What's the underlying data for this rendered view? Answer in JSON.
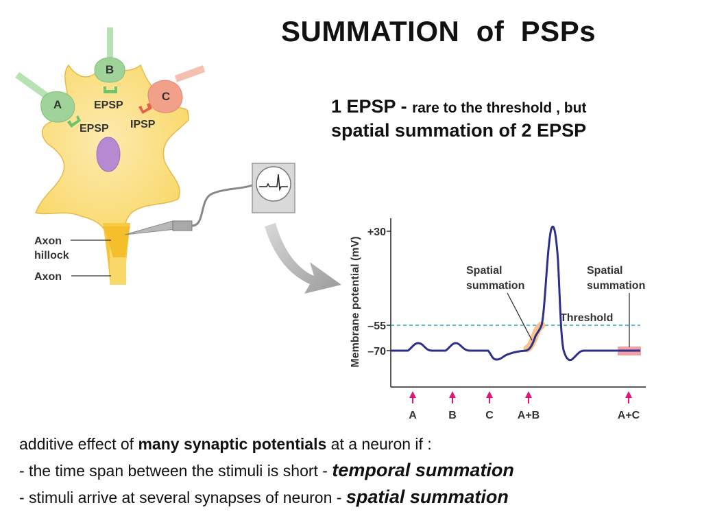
{
  "title": "SUMMATION  of  PSPs",
  "subtitle": {
    "line1_big": "1 EPSP - ",
    "line1_small": "rare to the threshold , but",
    "line2": "spatial summation of 2 EPSP"
  },
  "neuron": {
    "synapses": [
      {
        "id": "A",
        "label": "A",
        "type": "excitatory"
      },
      {
        "id": "B",
        "label": "B",
        "type": "excitatory"
      },
      {
        "id": "C",
        "label": "C",
        "type": "inhibitory"
      }
    ],
    "psp_labels": {
      "epsp_b": "EPSP",
      "epsp_a": "EPSP",
      "ipsp_c": "IPSP"
    },
    "axon_hillock_label_1": "Axon",
    "axon_hillock_label_2": "hillock",
    "axon_label": "Axon"
  },
  "colors": {
    "cell_body": "#f9d86a",
    "excitatory": "#9fd39a",
    "inhibitory": "#f2a08a",
    "nucleus": "#b58ad0",
    "trace": "#2c2f8c",
    "threshold": "#1aa3b8",
    "arrow": "#e0157a"
  },
  "chart_data": {
    "type": "line",
    "ylabel": "Membrane potential (mV)",
    "yticks": [
      "+30",
      "–55",
      "–70"
    ],
    "ytick_values": [
      30,
      -55,
      -70
    ],
    "threshold_label": "Threshold",
    "threshold_value": -55,
    "annotations": [
      {
        "line1": "Spatial",
        "line2": "summation",
        "at": "A+B"
      },
      {
        "line1": "Spatial",
        "line2": "summation",
        "at": "A+C"
      }
    ],
    "stimuli": [
      "A",
      "B",
      "C",
      "A+B",
      "A+C"
    ],
    "events": [
      {
        "stimulus": "A",
        "response": "EPSP",
        "peak_mv": -65
      },
      {
        "stimulus": "B",
        "response": "EPSP",
        "peak_mv": -65
      },
      {
        "stimulus": "C",
        "response": "IPSP",
        "peak_mv": -74
      },
      {
        "stimulus": "A+B",
        "response": "action potential",
        "peak_mv": 30
      },
      {
        "stimulus": "A+C",
        "response": "no change",
        "peak_mv": -70
      }
    ],
    "grid": false
  },
  "description": {
    "line1_pre": "additive effect of ",
    "line1_bold": "many synaptic potentials",
    "line1_post": " at a neuron if :",
    "line2_pre": "- the time span between the stimuli is short - ",
    "line2_em": "temporal summation",
    "line3_pre": "- stimuli arrive at several synapses of neuron - ",
    "line3_em": "spatial summation"
  }
}
